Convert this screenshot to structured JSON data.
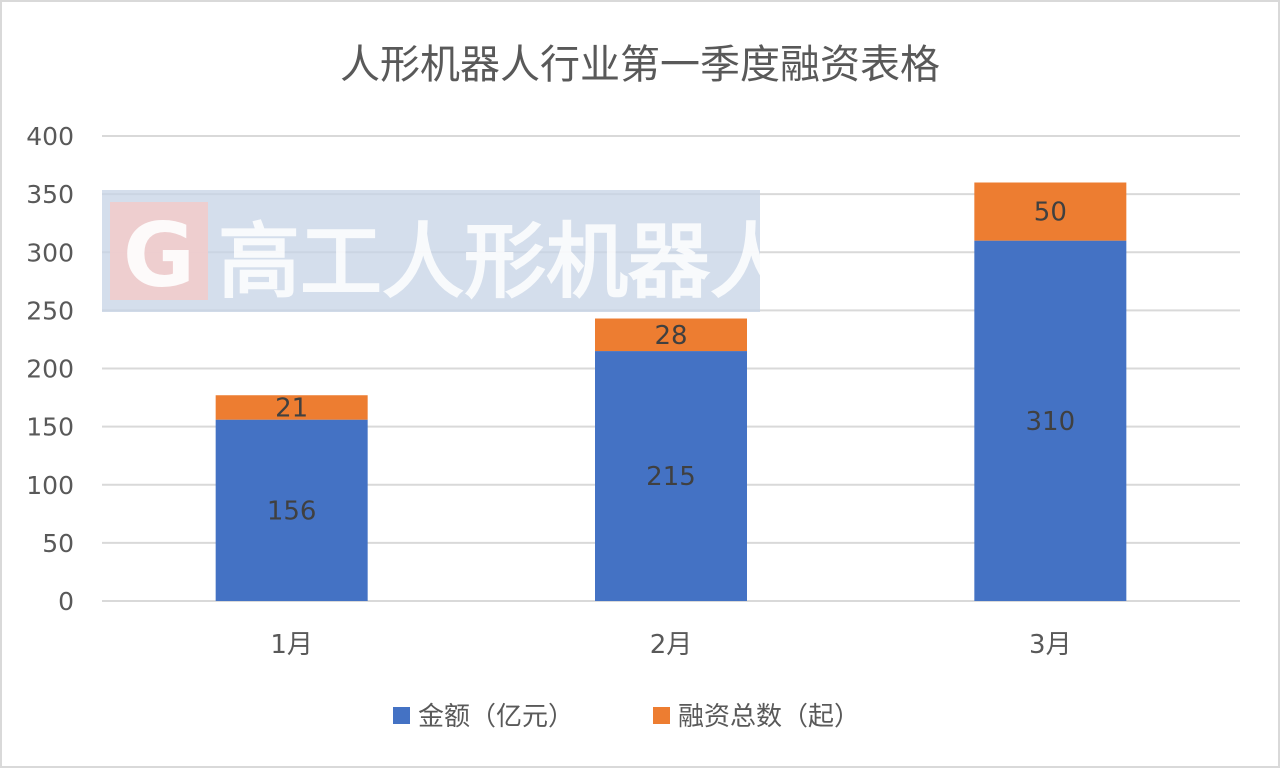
{
  "chart_data": {
    "type": "bar",
    "stacked": true,
    "title": "人形机器人行业第一季度融资表格",
    "xlabel": "",
    "ylabel": "",
    "categories": [
      "1月",
      "2月",
      "3月"
    ],
    "series": [
      {
        "name": "金额（亿元）",
        "values": [
          156,
          215,
          310
        ],
        "color": "#4472C4"
      },
      {
        "name": "融资总数（起）",
        "values": [
          21,
          28,
          50
        ],
        "color": "#ED7D31"
      }
    ],
    "ylim": [
      0,
      400
    ],
    "yticks": [
      "0",
      "50",
      "100",
      "150",
      "200",
      "250",
      "300",
      "350",
      "400"
    ],
    "grid": true,
    "legend_position": "bottom"
  },
  "watermark": {
    "logo_letter": "G",
    "text": "高工人形机器人"
  }
}
